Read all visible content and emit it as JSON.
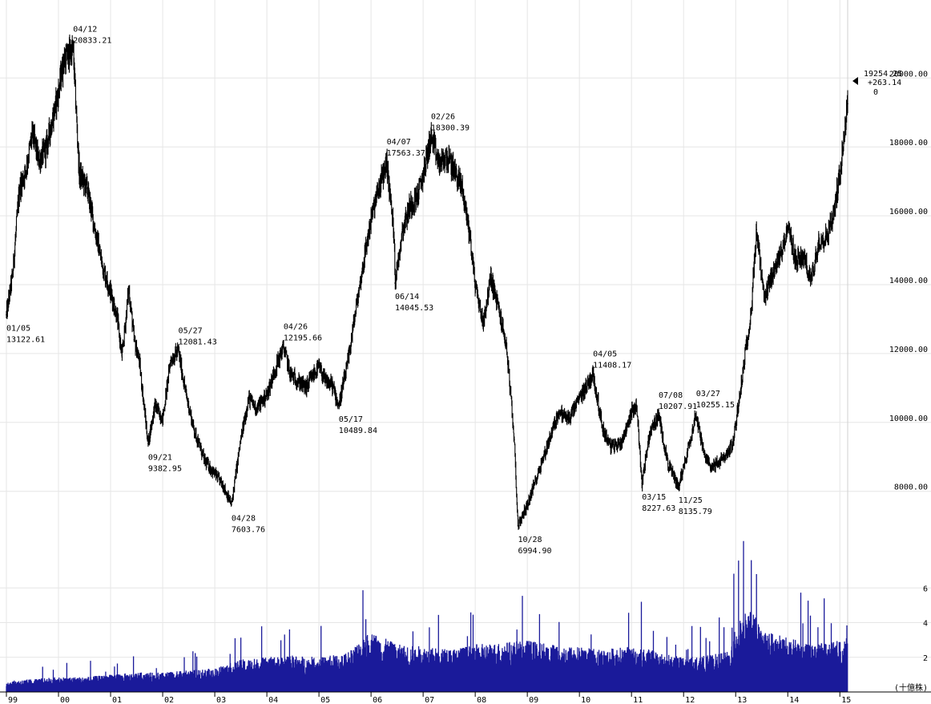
{
  "chart_data": {
    "type": "line",
    "instrument_note": "",
    "x_ticks": [
      "99",
      "00",
      "01",
      "02",
      "03",
      "04",
      "05",
      "06",
      "07",
      "08",
      "09",
      "10",
      "11",
      "12",
      "13",
      "14",
      "15"
    ],
    "x_range": [
      1999.0,
      2015.15
    ],
    "price_axis": {
      "ylim": [
        6200,
        21800
      ],
      "ticks": [
        {
          "value": 8000,
          "label": "8000.00"
        },
        {
          "value": 10000,
          "label": "10000.00"
        },
        {
          "value": 12000,
          "label": "12000.00"
        },
        {
          "value": 14000,
          "label": "14000.00"
        },
        {
          "value": 16000,
          "label": "16000.00"
        },
        {
          "value": 18000,
          "label": "18000.00"
        },
        {
          "value": 20000,
          "label": "20000.00"
        }
      ]
    },
    "volume_axis": {
      "ylim": [
        0,
        8
      ],
      "ticks": [
        {
          "value": 2,
          "label": "2"
        },
        {
          "value": 4,
          "label": "4"
        },
        {
          "value": 6,
          "label": "6"
        }
      ],
      "unit_label": "(十億株)"
    },
    "series": [
      {
        "kind": "price",
        "color": "#000000",
        "points": [
          [
            1999.0,
            13122.61
          ],
          [
            1999.12,
            14300
          ],
          [
            1999.25,
            16800
          ],
          [
            1999.37,
            17300
          ],
          [
            1999.5,
            18400
          ],
          [
            1999.62,
            17600
          ],
          [
            1999.75,
            17900
          ],
          [
            1999.87,
            18700
          ],
          [
            2000.0,
            19600
          ],
          [
            2000.1,
            20500
          ],
          [
            2000.28,
            20833.21
          ],
          [
            2000.4,
            17200
          ],
          [
            2000.55,
            16800
          ],
          [
            2000.7,
            15600
          ],
          [
            2000.85,
            14500
          ],
          [
            2001.0,
            13800
          ],
          [
            2001.12,
            13100
          ],
          [
            2001.22,
            11900
          ],
          [
            2001.35,
            13900
          ],
          [
            2001.45,
            12400
          ],
          [
            2001.55,
            11800
          ],
          [
            2001.72,
            9382.95
          ],
          [
            2001.85,
            10500
          ],
          [
            2002.0,
            10100
          ],
          [
            2002.15,
            11800
          ],
          [
            2002.3,
            12081.43
          ],
          [
            2002.45,
            10800
          ],
          [
            2002.6,
            9800
          ],
          [
            2002.8,
            8900
          ],
          [
            2003.0,
            8500
          ],
          [
            2003.15,
            8200
          ],
          [
            2003.32,
            7603.76
          ],
          [
            2003.5,
            9500
          ],
          [
            2003.65,
            10700
          ],
          [
            2003.8,
            10400
          ],
          [
            2004.0,
            10800
          ],
          [
            2004.15,
            11500
          ],
          [
            2004.32,
            12195.66
          ],
          [
            2004.45,
            11400
          ],
          [
            2004.6,
            11200
          ],
          [
            2004.75,
            11000
          ],
          [
            2004.9,
            11400
          ],
          [
            2005.0,
            11600
          ],
          [
            2005.12,
            11200
          ],
          [
            2005.25,
            11100
          ],
          [
            2005.38,
            10489.84
          ],
          [
            2005.55,
            11700
          ],
          [
            2005.7,
            13200
          ],
          [
            2005.85,
            14600
          ],
          [
            2006.0,
            15900
          ],
          [
            2006.15,
            16800
          ],
          [
            2006.3,
            17563.37
          ],
          [
            2006.45,
            15300
          ],
          [
            2006.46,
            14045.53
          ],
          [
            2006.6,
            15600
          ],
          [
            2006.75,
            16300
          ],
          [
            2006.9,
            16600
          ],
          [
            2007.0,
            17200
          ],
          [
            2007.15,
            18300.39
          ],
          [
            2007.3,
            17500
          ],
          [
            2007.45,
            17700
          ],
          [
            2007.6,
            17300
          ],
          [
            2007.75,
            16800
          ],
          [
            2007.9,
            15400
          ],
          [
            2008.0,
            14000
          ],
          [
            2008.15,
            12900
          ],
          [
            2008.3,
            14200
          ],
          [
            2008.45,
            13300
          ],
          [
            2008.6,
            12200
          ],
          [
            2008.75,
            9500
          ],
          [
            2008.82,
            6994.9
          ],
          [
            2009.0,
            7600
          ],
          [
            2009.2,
            8500
          ],
          [
            2009.4,
            9400
          ],
          [
            2009.6,
            10300
          ],
          [
            2009.8,
            10100
          ],
          [
            2010.0,
            10700
          ],
          [
            2010.26,
            11408.17
          ],
          [
            2010.45,
            9800
          ],
          [
            2010.6,
            9300
          ],
          [
            2010.8,
            9400
          ],
          [
            2011.0,
            10300
          ],
          [
            2011.1,
            10500
          ],
          [
            2011.2,
            8227.63
          ],
          [
            2011.35,
            9700
          ],
          [
            2011.52,
            10207.91
          ],
          [
            2011.7,
            8800
          ],
          [
            2011.9,
            8135.79
          ],
          [
            2012.0,
            8700
          ],
          [
            2012.24,
            10255.15
          ],
          [
            2012.4,
            9000
          ],
          [
            2012.55,
            8700
          ],
          [
            2012.8,
            9000
          ],
          [
            2012.95,
            9400
          ],
          [
            2013.15,
            11600
          ],
          [
            2013.3,
            13300
          ],
          [
            2013.4,
            15600
          ],
          [
            2013.55,
            13500
          ],
          [
            2013.7,
            14300
          ],
          [
            2013.85,
            14800
          ],
          [
            2014.0,
            15700
          ],
          [
            2014.15,
            14700
          ],
          [
            2014.3,
            14800
          ],
          [
            2014.45,
            14100
          ],
          [
            2014.6,
            15300
          ],
          [
            2014.75,
            15400
          ],
          [
            2014.85,
            15900
          ],
          [
            2014.92,
            16400
          ],
          [
            2015.0,
            17300
          ],
          [
            2015.1,
            18600
          ],
          [
            2015.15,
            19254.25
          ]
        ]
      }
    ],
    "annotations": [
      {
        "date": "01/05",
        "value": "13122.61",
        "x": 1999.0,
        "y": 13122.61,
        "pos": "below"
      },
      {
        "date": "04/12",
        "value": "20833.21",
        "x": 2000.28,
        "y": 20833.21,
        "pos": "above"
      },
      {
        "date": "09/21",
        "value": "9382.95",
        "x": 2001.72,
        "y": 9382.95,
        "pos": "below"
      },
      {
        "date": "05/27",
        "value": "12081.43",
        "x": 2002.3,
        "y": 12081.43,
        "pos": "above"
      },
      {
        "date": "04/28",
        "value": "7603.76",
        "x": 2003.32,
        "y": 7603.76,
        "pos": "below"
      },
      {
        "date": "04/26",
        "value": "12195.66",
        "x": 2004.32,
        "y": 12195.66,
        "pos": "above"
      },
      {
        "date": "05/17",
        "value": "10489.84",
        "x": 2005.38,
        "y": 10489.84,
        "pos": "below"
      },
      {
        "date": "04/07",
        "value": "17563.37",
        "x": 2006.3,
        "y": 17563.37,
        "pos": "above"
      },
      {
        "date": "06/14",
        "value": "14045.53",
        "x": 2006.46,
        "y": 14045.53,
        "pos": "below"
      },
      {
        "date": "02/26",
        "value": "18300.39",
        "x": 2007.15,
        "y": 18300.39,
        "pos": "above"
      },
      {
        "date": "10/28",
        "value": "6994.90",
        "x": 2008.82,
        "y": 6994.9,
        "pos": "below"
      },
      {
        "date": "04/05",
        "value": "11408.17",
        "x": 2010.26,
        "y": 11408.17,
        "pos": "above"
      },
      {
        "date": "03/15",
        "value": "8227.63",
        "x": 2011.2,
        "y": 8227.63,
        "pos": "below"
      },
      {
        "date": "07/08",
        "value": "10207.91",
        "x": 2011.52,
        "y": 10207.91,
        "pos": "above"
      },
      {
        "date": "11/25",
        "value": "8135.79",
        "x": 2011.9,
        "y": 8135.79,
        "pos": "below"
      },
      {
        "date": "03/27",
        "value": "10255.15",
        "x": 2012.24,
        "y": 10255.15,
        "pos": "above"
      }
    ],
    "last_price": {
      "value": "19254.25",
      "change": "+263.14",
      "extra": "0"
    },
    "volume": {
      "color": "#1a1a9a",
      "points": [
        [
          1999.0,
          0.5
        ],
        [
          1999.5,
          0.6
        ],
        [
          2000.0,
          0.7
        ],
        [
          2000.5,
          0.7
        ],
        [
          2001.0,
          0.8
        ],
        [
          2001.5,
          0.9
        ],
        [
          2002.0,
          0.9
        ],
        [
          2002.5,
          1.0
        ],
        [
          2003.0,
          1.1
        ],
        [
          2003.5,
          1.5
        ],
        [
          2004.0,
          1.6
        ],
        [
          2004.5,
          1.7
        ],
        [
          2005.0,
          1.6
        ],
        [
          2005.5,
          1.8
        ],
        [
          2006.0,
          2.8
        ],
        [
          2006.5,
          2.2
        ],
        [
          2007.0,
          2.1
        ],
        [
          2007.5,
          2.0
        ],
        [
          2008.0,
          2.2
        ],
        [
          2008.5,
          2.3
        ],
        [
          2009.0,
          2.4
        ],
        [
          2009.5,
          2.2
        ],
        [
          2010.0,
          2.1
        ],
        [
          2010.5,
          2.0
        ],
        [
          2011.0,
          2.1
        ],
        [
          2011.5,
          1.9
        ],
        [
          2012.0,
          1.6
        ],
        [
          2012.5,
          1.7
        ],
        [
          2012.9,
          1.9
        ],
        [
          2013.0,
          3.4
        ],
        [
          2013.3,
          3.8
        ],
        [
          2013.5,
          2.9
        ],
        [
          2014.0,
          2.5
        ],
        [
          2014.5,
          2.2
        ],
        [
          2015.0,
          2.4
        ],
        [
          2015.15,
          2.5
        ]
      ],
      "spikes": [
        [
          2005.9,
          4.2
        ],
        [
          2008.8,
          3.6
        ],
        [
          2011.19,
          5.2
        ],
        [
          2013.3,
          7.6
        ],
        [
          2013.4,
          6.8
        ],
        [
          2014.7,
          5.4
        ]
      ]
    }
  }
}
